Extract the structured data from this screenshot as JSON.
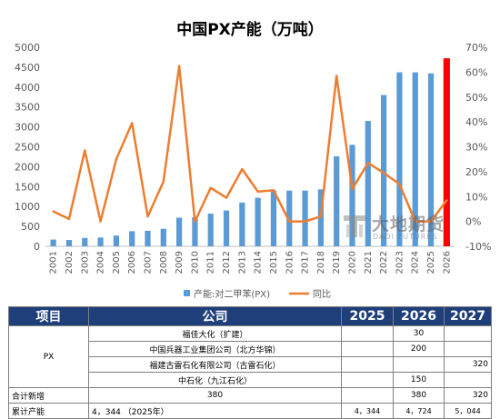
{
  "chart_data": {
    "type": "bar",
    "title": "中国PX产能（万吨）",
    "x": [
      "2001",
      "2002",
      "2003",
      "2004",
      "2005",
      "2006",
      "2007",
      "2008",
      "2009",
      "2010",
      "2011",
      "2012",
      "2013",
      "2014",
      "2015",
      "2016",
      "2017",
      "2018",
      "2019",
      "2020",
      "2021",
      "2022",
      "2023",
      "2024",
      "2025",
      "2026"
    ],
    "y_left_ticks": [
      "0",
      "500",
      "1000",
      "1500",
      "2000",
      "2500",
      "3000",
      "3500",
      "4000",
      "4500",
      "5000"
    ],
    "y_right_ticks": [
      "-10%",
      "0%",
      "10%",
      "20%",
      "30%",
      "40%",
      "50%",
      "60%",
      "70%"
    ],
    "y_left_range": [
      0,
      5000
    ],
    "y_right_range": [
      -10,
      70
    ],
    "series": [
      {
        "name": "产能:对二甲苯(PX)",
        "type": "bar",
        "axis": "left",
        "color": "#5b9bd5",
        "highlight_color": "#ff0000",
        "highlight_index": 25,
        "values": [
          170,
          160,
          210,
          220,
          270,
          380,
          390,
          440,
          720,
          730,
          820,
          900,
          1100,
          1220,
          1400,
          1400,
          1400,
          1430,
          2260,
          2550,
          3150,
          3800,
          4370,
          4370,
          4344,
          4724
        ]
      },
      {
        "name": "同比",
        "type": "line",
        "axis": "right",
        "color": "#ed7d31",
        "values": [
          4,
          1,
          28.5,
          0,
          25,
          39.5,
          2,
          16,
          62.5,
          0,
          13.5,
          9.5,
          21,
          12,
          12.5,
          0,
          0,
          2,
          58.5,
          13,
          23.5,
          19.5,
          15,
          0,
          0,
          8.5
        ]
      }
    ],
    "grid": false,
    "legend_position": "bottom"
  },
  "watermark": {
    "text_cn": "大地期货",
    "text_en": "DADI FUTURES"
  },
  "table": {
    "headers": [
      "项目",
      "公司",
      "2025",
      "2026",
      "2027"
    ],
    "group_label": "PX",
    "companies": [
      {
        "name": "福佳大化（扩建）",
        "v2025": "",
        "v2026": "30",
        "v2027": ""
      },
      {
        "name": "中国兵器工业集团公司（北方华锦）",
        "v2025": "",
        "v2026": "200",
        "v2027": ""
      },
      {
        "name": "福建古雷石化有限公司（古雷石化）",
        "v2025": "",
        "v2026": "",
        "v2027": "320"
      },
      {
        "name": "中石化（九江石化）",
        "v2025": "",
        "v2026": "150",
        "v2027": ""
      }
    ],
    "total_new": {
      "label": "合计新增",
      "company": "380",
      "v2025": "",
      "v2026": "380",
      "v2027": "320"
    },
    "cumulative": {
      "label": "累计产能",
      "company": "4，344 （2025年）",
      "v2025": "4，344",
      "v2026": "4，724",
      "v2027": "5，044"
    }
  }
}
